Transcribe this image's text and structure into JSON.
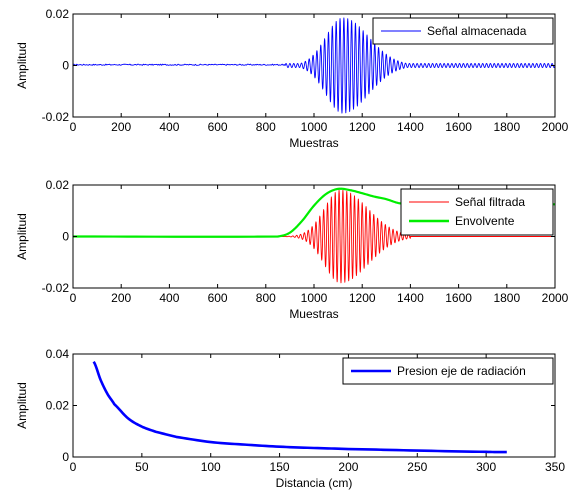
{
  "chart_data": [
    {
      "type": "line",
      "xlabel": "Muestras",
      "ylabel": "Amplitud",
      "xlim": [
        0,
        2000
      ],
      "ylim": [
        -0.02,
        0.02
      ],
      "xticks": [
        0,
        200,
        400,
        600,
        800,
        1000,
        1200,
        1400,
        1600,
        1800,
        2000
      ],
      "yticks": [
        -0.02,
        0,
        0.02
      ],
      "ytick_labels": [
        "-0.02",
        "0",
        "0.02"
      ],
      "legend_position": "top-right",
      "series": [
        {
          "name": "Señal almacenada",
          "color": "#0000ff",
          "kind": "oscillation",
          "start": 880,
          "end": 2000,
          "center": 1120,
          "width_left": 100,
          "width_right": 150,
          "peak": 0.0185,
          "period": 16,
          "noise_floor": 0.0008
        }
      ]
    },
    {
      "type": "line",
      "xlabel": "Muestras",
      "ylabel": "Amplitud",
      "xlim": [
        0,
        2000
      ],
      "ylim": [
        -0.02,
        0.02
      ],
      "xticks": [
        0,
        200,
        400,
        600,
        800,
        1000,
        1200,
        1400,
        1600,
        1800,
        2000
      ],
      "yticks": [
        -0.02,
        0,
        0.02
      ],
      "ytick_labels": [
        "-0.02",
        "0",
        "0.02"
      ],
      "legend_position": "top-right",
      "series": [
        {
          "name": "Señal filtrada",
          "color": "#ff0000",
          "kind": "oscillation",
          "start": 860,
          "end": 1400,
          "center": 1110,
          "width_left": 95,
          "width_right": 160,
          "peak": 0.018,
          "period": 16,
          "noise_floor": 0
        },
        {
          "name": "Envolvente",
          "color": "#00ee00",
          "kind": "envelope",
          "x": [
            0,
            850,
            900,
            950,
            1000,
            1050,
            1100,
            1150,
            1200,
            1250,
            1300,
            1350,
            1400,
            2000
          ],
          "y": [
            0,
            0,
            0.0015,
            0.006,
            0.012,
            0.0165,
            0.0185,
            0.018,
            0.0168,
            0.0155,
            0.0145,
            0.013,
            0.0125,
            0.0125
          ]
        }
      ]
    },
    {
      "type": "line",
      "xlabel": "Distancia (cm)",
      "ylabel": "Amplitud",
      "xlim": [
        0,
        350
      ],
      "ylim": [
        0,
        0.04
      ],
      "xticks": [
        0,
        50,
        100,
        150,
        200,
        250,
        300,
        350
      ],
      "yticks": [
        0,
        0.02,
        0.04
      ],
      "ytick_labels": [
        "0",
        "0.02",
        "0.04"
      ],
      "legend_position": "top-right",
      "series": [
        {
          "name": "Presion eje de radiación",
          "color": "#0000ff",
          "kind": "xy",
          "x": [
            15,
            20,
            25,
            30,
            40,
            50,
            60,
            75,
            100,
            125,
            150,
            175,
            200,
            250,
            300,
            315
          ],
          "y": [
            0.037,
            0.03,
            0.0245,
            0.0205,
            0.015,
            0.0118,
            0.0098,
            0.0078,
            0.0058,
            0.0048,
            0.004,
            0.0035,
            0.0031,
            0.0025,
            0.002,
            0.0019
          ]
        }
      ]
    }
  ]
}
